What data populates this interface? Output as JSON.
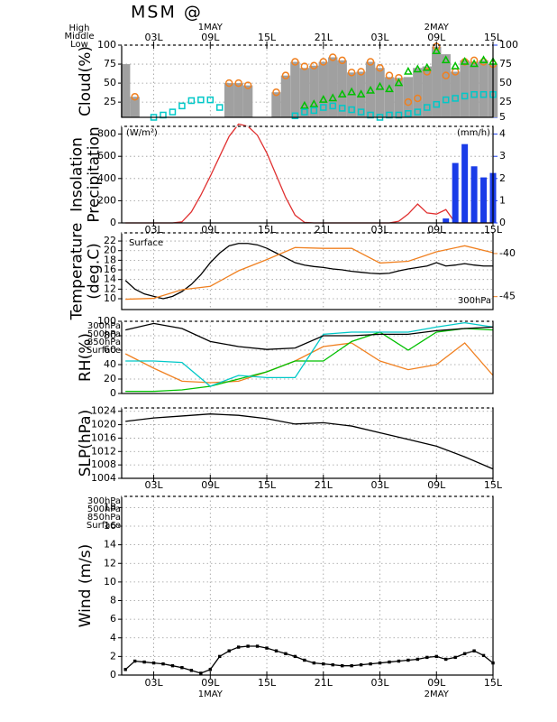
{
  "title": "MSM @",
  "time_axis": {
    "xlim": [
      -0.4,
      39
    ],
    "xticks": [
      {
        "value": 3,
        "label": "03L"
      },
      {
        "value": 9,
        "label": "09L"
      },
      {
        "value": 15,
        "label": "15L"
      },
      {
        "value": 21,
        "label": "21L"
      },
      {
        "value": 27,
        "label": "03L"
      },
      {
        "value": 33,
        "label": "09L"
      },
      {
        "value": 39,
        "label": "15L"
      }
    ],
    "dates": [
      {
        "value": 9,
        "label": "1MAY"
      },
      {
        "value": 33,
        "label": "2MAY"
      }
    ]
  },
  "chart_data": [
    {
      "type": "cloud",
      "ylabel": [
        "Cloud(%)"
      ],
      "ylim": [
        5,
        100
      ],
      "yticks": [
        25,
        50,
        75,
        100
      ],
      "y2lim": [
        5,
        100
      ],
      "y2ticks": [
        100,
        75,
        50,
        25,
        5
      ],
      "y2_color": "#1a3ce8",
      "grid": true,
      "x": [
        0,
        1,
        2,
        3,
        4,
        5,
        6,
        7,
        8,
        9,
        10,
        11,
        12,
        13,
        14,
        15,
        16,
        17,
        18,
        19,
        20,
        21,
        22,
        23,
        24,
        25,
        26,
        27,
        28,
        29,
        30,
        31,
        32,
        33,
        34,
        35,
        36,
        37,
        38,
        39
      ],
      "bar_color": "#a0a0a0",
      "bar_values": [
        75,
        32,
        0,
        0,
        0,
        0,
        0,
        0,
        0,
        0,
        0,
        50,
        50,
        47,
        0,
        0,
        38,
        60,
        78,
        70,
        73,
        78,
        84,
        80,
        64,
        65,
        78,
        70,
        58,
        57,
        58,
        70,
        72,
        98,
        88,
        65,
        80,
        78,
        80,
        75
      ],
      "series": [
        {
          "name": "High",
          "color": "#f08020",
          "marker": "circle",
          "values": [
            null,
            32,
            null,
            null,
            null,
            null,
            null,
            null,
            null,
            null,
            null,
            50,
            50,
            47,
            null,
            null,
            38,
            60,
            78,
            72,
            73,
            78,
            84,
            80,
            64,
            65,
            78,
            70,
            60,
            57,
            25,
            30,
            65,
            98,
            60,
            65,
            78,
            80,
            78,
            75
          ]
        },
        {
          "name": "Middle",
          "color": "#00c000",
          "marker": "triangle",
          "values": [
            null,
            null,
            null,
            null,
            null,
            null,
            null,
            null,
            null,
            null,
            null,
            null,
            null,
            null,
            null,
            null,
            null,
            null,
            null,
            20,
            22,
            28,
            30,
            35,
            38,
            35,
            40,
            45,
            42,
            50,
            65,
            68,
            70,
            92,
            80,
            72,
            78,
            75,
            80,
            78
          ]
        },
        {
          "name": "Low",
          "color": "#00c8c8",
          "marker": "square",
          "values": [
            null,
            null,
            null,
            5,
            8,
            12,
            20,
            27,
            28,
            28,
            18,
            null,
            null,
            null,
            null,
            null,
            null,
            null,
            7,
            12,
            14,
            18,
            20,
            17,
            15,
            12,
            8,
            5,
            8,
            8,
            10,
            12,
            18,
            22,
            28,
            30,
            33,
            35,
            35,
            35
          ]
        }
      ]
    },
    {
      "type": "combo",
      "ylabel": [
        "Insolation",
        "Precipitation"
      ],
      "ylim": [
        0,
        870
      ],
      "yticks": [
        0,
        200,
        400,
        600,
        800
      ],
      "y2lim": [
        0,
        4.35
      ],
      "y2ticks": [
        0,
        1,
        2,
        3,
        4
      ],
      "y2_color": "#1a3ce8",
      "grid": true,
      "x": [
        0,
        1,
        2,
        3,
        4,
        5,
        6,
        7,
        8,
        9,
        10,
        11,
        12,
        13,
        14,
        15,
        16,
        17,
        18,
        19,
        20,
        21,
        22,
        23,
        24,
        25,
        26,
        27,
        28,
        29,
        30,
        31,
        32,
        33,
        34,
        35,
        36,
        37,
        38,
        39
      ],
      "series": [
        {
          "unit_label": "(W/m²)",
          "kind": "line",
          "color": "#e03030",
          "values": [
            0,
            0,
            0,
            0,
            0,
            0,
            10,
            100,
            250,
            420,
            600,
            780,
            890,
            870,
            790,
            630,
            430,
            230,
            70,
            5,
            0,
            0,
            0,
            0,
            0,
            0,
            0,
            0,
            0,
            15,
            80,
            170,
            90,
            80,
            120,
            0,
            0,
            0,
            0,
            0
          ]
        },
        {
          "unit_label": "(mm/h)",
          "kind": "bar",
          "axis": "y2",
          "color": "#1a3ce8",
          "values": [
            0,
            0,
            0,
            0,
            0,
            0,
            0,
            0,
            0,
            0,
            0,
            0,
            0,
            0,
            0,
            0,
            0,
            0,
            0,
            0,
            0,
            0,
            0,
            0,
            0,
            0,
            0,
            0,
            0,
            0,
            0,
            0,
            0,
            0,
            0.2,
            2.7,
            3.55,
            2.55,
            2.05,
            2.25
          ]
        }
      ]
    },
    {
      "type": "line",
      "ylabel": [
        "Temperature",
        "(deg.C)"
      ],
      "ylim": [
        7.75,
        23.7
      ],
      "yticks": [
        10,
        12,
        14,
        16,
        18,
        20,
        22
      ],
      "y2lim": [
        -46.5,
        -37.6
      ],
      "y2ticks": [
        -40,
        -45
      ],
      "y2_color": "#f08020",
      "grid": true,
      "x": [
        0,
        1,
        2,
        3,
        4,
        5,
        6,
        7,
        8,
        9,
        10,
        11,
        12,
        13,
        14,
        15,
        16,
        17,
        18,
        19,
        20,
        21,
        22,
        23,
        24,
        25,
        26,
        27,
        28,
        29,
        30,
        31,
        32,
        33,
        34,
        35,
        36,
        37,
        38,
        39
      ],
      "series": [
        {
          "name": "Surface",
          "color": "#000000",
          "legend": "top-left",
          "values": [
            13.8,
            12,
            11,
            10.5,
            10,
            10.5,
            11.5,
            13,
            15,
            17.5,
            19.5,
            21,
            21.5,
            21.5,
            21.2,
            20.5,
            19.5,
            18.5,
            17.5,
            17,
            16.7,
            16.5,
            16.2,
            16,
            15.7,
            15.5,
            15.3,
            15.2,
            15.3,
            15.8,
            16.2,
            16.5,
            16.8,
            17.5,
            16.8,
            17,
            17.3,
            17,
            16.8,
            16.8
          ]
        },
        {
          "name": "300hPa",
          "color": "#f08020",
          "axis": "y2",
          "legend": "bottom-right",
          "x": [
            0,
            3,
            6,
            9,
            12,
            15,
            18,
            21,
            24,
            27,
            30,
            33,
            36,
            39
          ],
          "values": [
            -45.3,
            -45.2,
            -44.2,
            -43.8,
            -42,
            -40.7,
            -39.3,
            -39.4,
            -39.4,
            -41.1,
            -40.9,
            -39.8,
            -39.1,
            -39.9
          ]
        }
      ]
    },
    {
      "type": "line",
      "ylabel": [
        "RH(%)"
      ],
      "ylim": [
        0,
        100
      ],
      "yticks": [
        0,
        20,
        40,
        60,
        80,
        100
      ],
      "grid": true,
      "legend": "left",
      "x": [
        0,
        3,
        6,
        9,
        12,
        15,
        18,
        21,
        24,
        27,
        30,
        33,
        36,
        39
      ],
      "series": [
        {
          "name": "300hPa",
          "color": "#f08020",
          "values": [
            55,
            35,
            17,
            15,
            17,
            30,
            45,
            65,
            70,
            45,
            33,
            40,
            70,
            25
          ]
        },
        {
          "name": "500hPa",
          "color": "#00c000",
          "values": [
            3,
            3,
            5,
            10,
            20,
            30,
            45,
            45,
            72,
            85,
            60,
            85,
            90,
            88
          ]
        },
        {
          "name": "850hPa",
          "color": "#00c8c8",
          "values": [
            45,
            45,
            43,
            10,
            25,
            22,
            22,
            82,
            85,
            85,
            85,
            92,
            98,
            92
          ]
        },
        {
          "name": "Surface",
          "color": "#000000",
          "values": [
            88,
            97,
            90,
            72,
            65,
            61,
            63,
            80,
            80,
            82,
            82,
            87,
            90,
            92
          ]
        }
      ]
    },
    {
      "type": "line",
      "ylabel": [
        "SLP(hPa)"
      ],
      "ylim": [
        1004,
        1025
      ],
      "yticks": [
        1004,
        1008,
        1012,
        1016,
        1020,
        1024
      ],
      "grid": true,
      "x": [
        0,
        3,
        6,
        9,
        12,
        15,
        18,
        21,
        24,
        27,
        30,
        33,
        36,
        39
      ],
      "series": [
        {
          "color": "#000000",
          "values": [
            1021,
            1022,
            1022.6,
            1023.2,
            1022.8,
            1021.8,
            1020.2,
            1020.6,
            1019.6,
            1017.6,
            1015.6,
            1013.6,
            1010.4,
            1006.8
          ]
        }
      ]
    },
    {
      "type": "line",
      "ylabel": [
        "Wind  (m/s)"
      ],
      "ylim": [
        0,
        19.2
      ],
      "yticks": [
        0,
        2,
        4,
        6,
        8,
        10,
        12,
        14,
        16,
        18
      ],
      "grid": true,
      "legend": "left",
      "x": [
        0,
        1,
        2,
        3,
        4,
        5,
        6,
        7,
        8,
        9,
        10,
        11,
        12,
        13,
        14,
        15,
        16,
        17,
        18,
        19,
        20,
        21,
        22,
        23,
        24,
        25,
        26,
        27,
        28,
        29,
        30,
        31,
        32,
        33,
        34,
        35,
        36,
        37,
        38,
        39
      ],
      "legend_only": [
        {
          "name": "300hPa",
          "color": "#f08020"
        },
        {
          "name": "500hPa",
          "color": "#00c000"
        },
        {
          "name": "850hPa",
          "color": "#00c8c8"
        }
      ],
      "series": [
        {
          "name": "Surface",
          "color": "#000000",
          "markers": true,
          "values": [
            0.6,
            1.5,
            1.4,
            1.3,
            1.2,
            1.0,
            0.8,
            0.5,
            0.2,
            0.6,
            2.0,
            2.6,
            3.0,
            3.1,
            3.1,
            2.9,
            2.6,
            2.3,
            2.0,
            1.6,
            1.3,
            1.2,
            1.1,
            1.0,
            1.0,
            1.1,
            1.2,
            1.3,
            1.4,
            1.5,
            1.6,
            1.7,
            1.9,
            2.0,
            1.7,
            1.9,
            2.3,
            2.6,
            2.1,
            1.3
          ]
        }
      ]
    }
  ]
}
